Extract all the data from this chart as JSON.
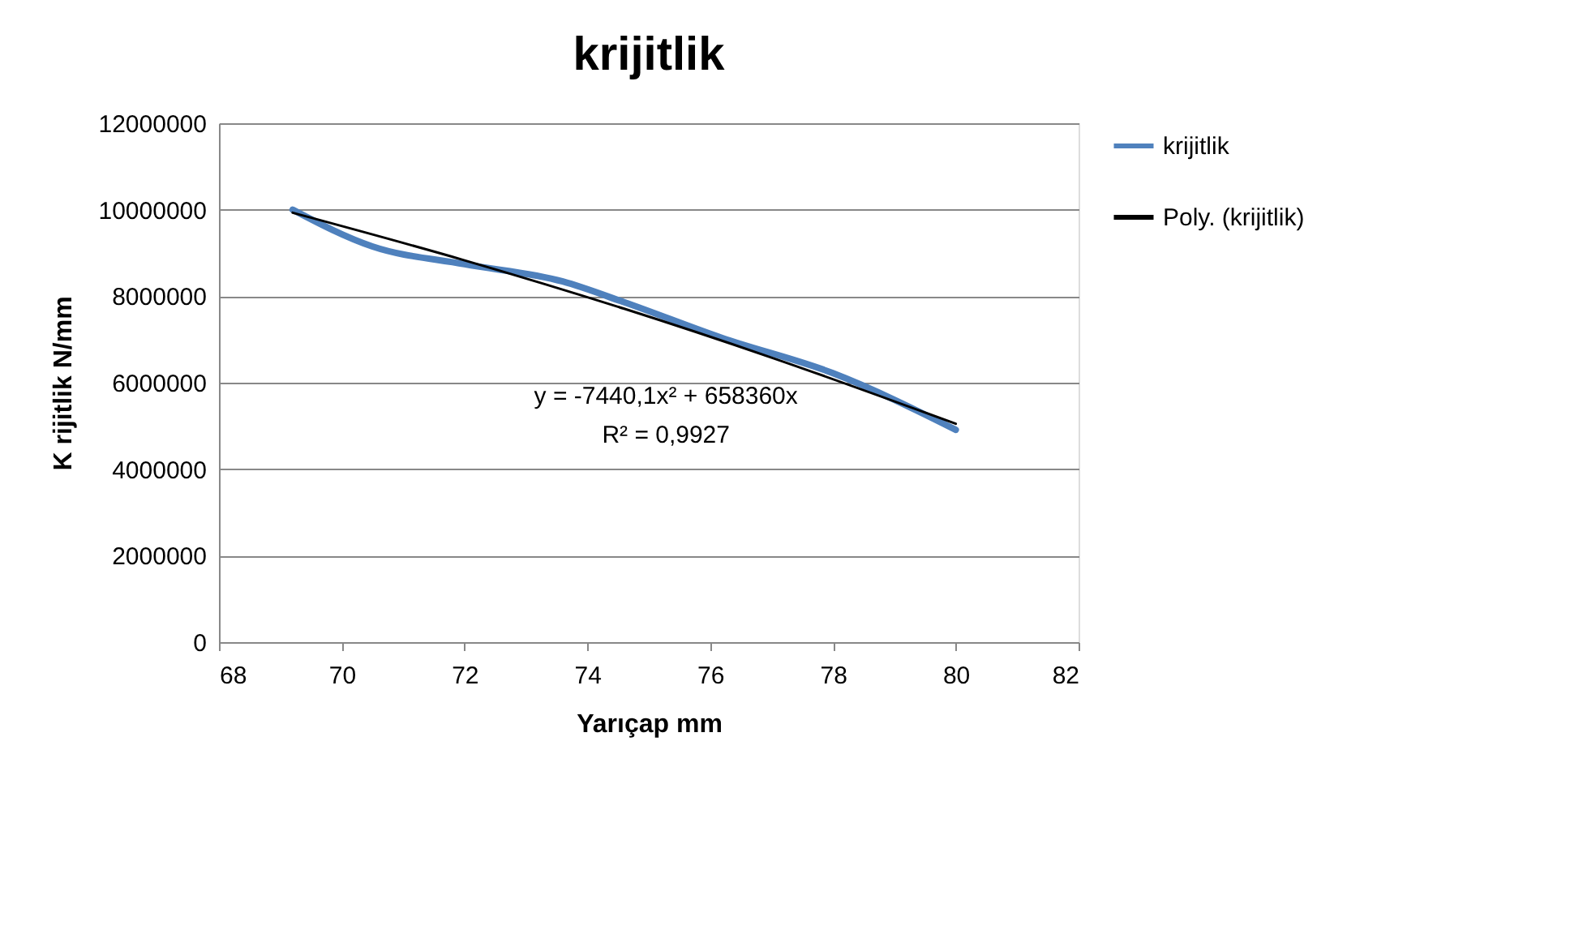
{
  "chart_data": {
    "type": "line",
    "title": "krijitlik",
    "xlabel": "Yarıçap mm",
    "ylabel": "K rijitlik N/mm",
    "xlim": [
      68,
      82
    ],
    "xticks": [
      68,
      70,
      72,
      74,
      76,
      78,
      80,
      82
    ],
    "ylim": [
      0,
      12000000
    ],
    "yticks": [
      0,
      2000000,
      4000000,
      6000000,
      8000000,
      10000000,
      12000000
    ],
    "grid": "y",
    "legend": "right",
    "marker": "none",
    "line_style": "solid",
    "series": [
      {
        "name": "krijitlik",
        "color": "#4f81bd",
        "x": [
          69.2,
          70.5,
          72.0,
          73.6,
          74.6,
          76.2,
          78.0,
          80.0
        ],
        "values": [
          10000000,
          9150000,
          8740000,
          8340000,
          7860000,
          7030000,
          6220000,
          4910000
        ]
      },
      {
        "name": "Poly. (krijitlik)",
        "color": "#000000",
        "x": [
          69.2,
          72.0,
          74.6,
          77.0,
          80.0
        ],
        "values": [
          9930000,
          8830000,
          7710000,
          6580000,
          5050000
        ]
      }
    ],
    "annotations": [
      "y = -7440,1x² + 658360x",
      "R² = 0,9927"
    ]
  }
}
